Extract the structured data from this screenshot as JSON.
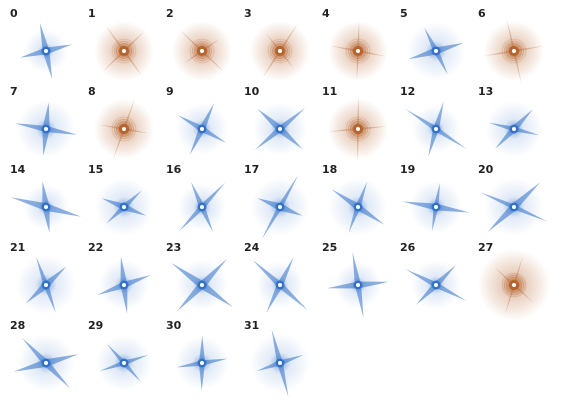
{
  "panels": [
    {
      "label": "0",
      "color": "#2f6fc6"
    },
    {
      "label": "1",
      "color": "#b5612a"
    },
    {
      "label": "2",
      "color": "#b5612a"
    },
    {
      "label": "3",
      "color": "#b5612a"
    },
    {
      "label": "4",
      "color": "#b5612a"
    },
    {
      "label": "5",
      "color": "#2f6fc6"
    },
    {
      "label": "6",
      "color": "#b5612a"
    },
    {
      "label": "7",
      "color": "#2f6fc6"
    },
    {
      "label": "8",
      "color": "#b5612a"
    },
    {
      "label": "9",
      "color": "#2f6fc6"
    },
    {
      "label": "10",
      "color": "#2f6fc6"
    },
    {
      "label": "11",
      "color": "#b5612a"
    },
    {
      "label": "12",
      "color": "#2f6fc6"
    },
    {
      "label": "13",
      "color": "#2f6fc6"
    },
    {
      "label": "14",
      "color": "#2f6fc6"
    },
    {
      "label": "15",
      "color": "#2f6fc6"
    },
    {
      "label": "16",
      "color": "#2f6fc6"
    },
    {
      "label": "17",
      "color": "#2f6fc6"
    },
    {
      "label": "18",
      "color": "#2f6fc6"
    },
    {
      "label": "19",
      "color": "#2f6fc6"
    },
    {
      "label": "20",
      "color": "#2f6fc6"
    },
    {
      "label": "21",
      "color": "#2f6fc6"
    },
    {
      "label": "22",
      "color": "#2f6fc6"
    },
    {
      "label": "23",
      "color": "#2f6fc6"
    },
    {
      "label": "24",
      "color": "#2f6fc6"
    },
    {
      "label": "25",
      "color": "#2f6fc6"
    },
    {
      "label": "26",
      "color": "#2f6fc6"
    },
    {
      "label": "27",
      "color": "#b5612a"
    },
    {
      "label": "28",
      "color": "#2f6fc6"
    },
    {
      "label": "29",
      "color": "#2f6fc6"
    },
    {
      "label": "30",
      "color": "#2f6fc6"
    },
    {
      "label": "31",
      "color": "#2f6fc6"
    }
  ]
}
